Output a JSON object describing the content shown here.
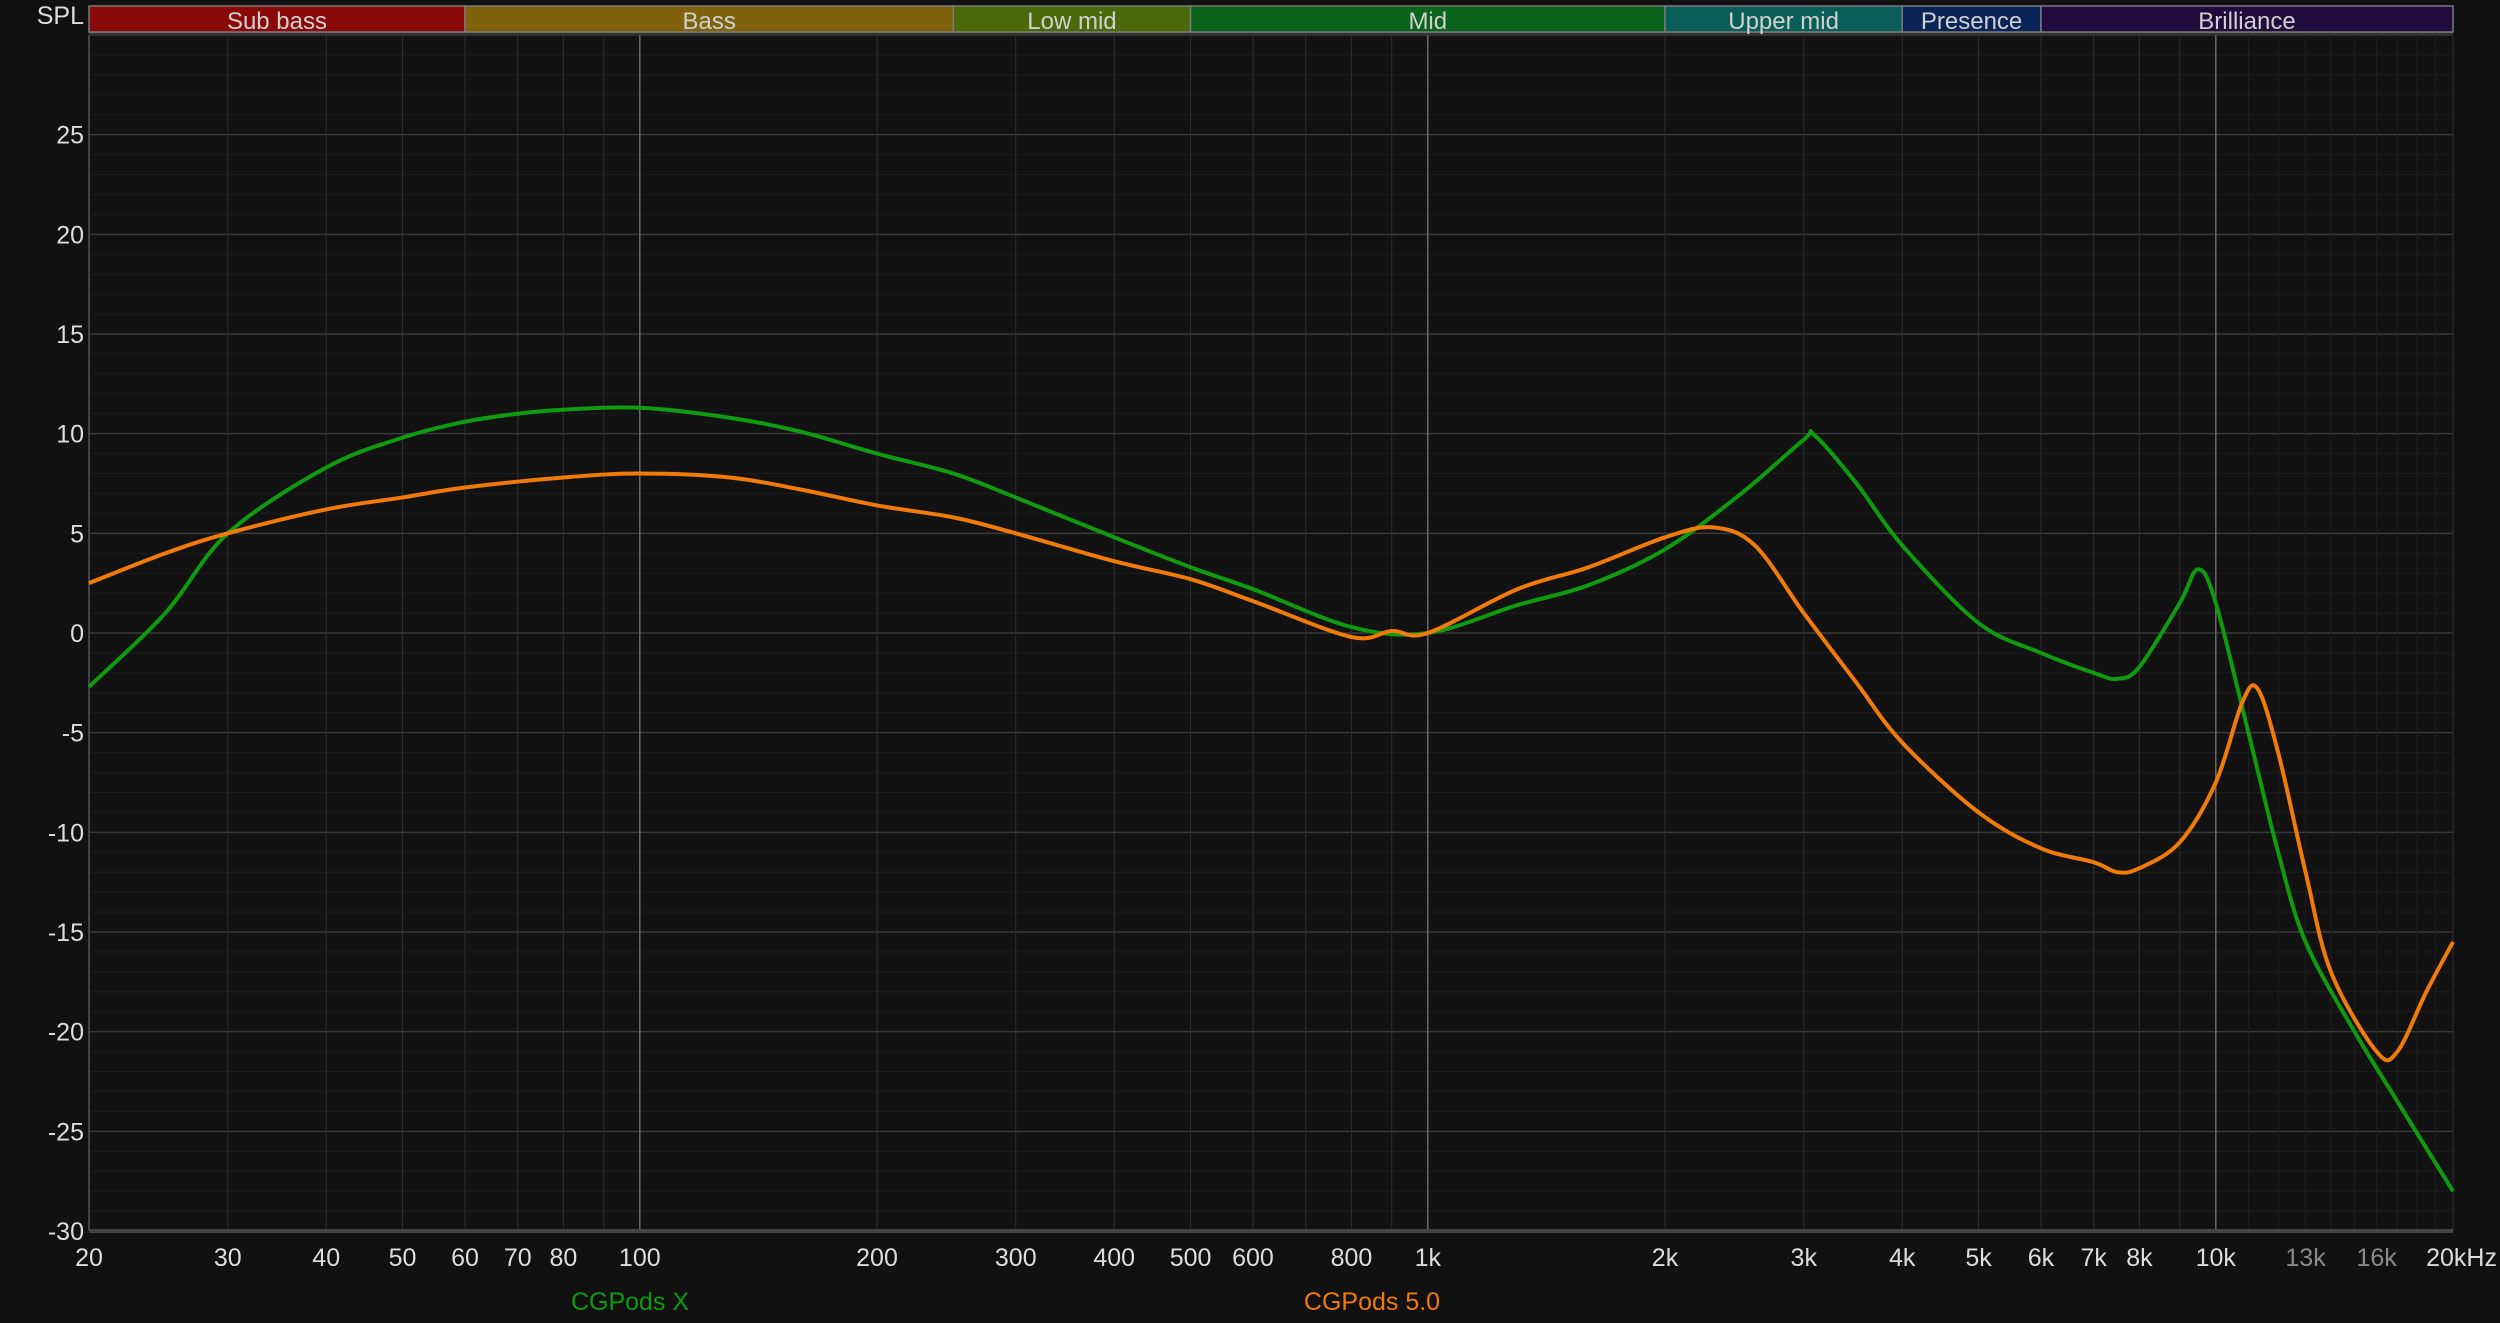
{
  "chart_data": {
    "type": "line",
    "ylabel": "SPL",
    "x_scale": "log",
    "xlim": [
      20,
      20000
    ],
    "ylim": [
      -30,
      30
    ],
    "grid": true,
    "x_ticks": [
      {
        "value": 20,
        "label": "20"
      },
      {
        "value": 30,
        "label": "30"
      },
      {
        "value": 40,
        "label": "40"
      },
      {
        "value": 50,
        "label": "50"
      },
      {
        "value": 60,
        "label": "60"
      },
      {
        "value": 70,
        "label": "70"
      },
      {
        "value": 80,
        "label": "80"
      },
      {
        "value": 100,
        "label": "100"
      },
      {
        "value": 200,
        "label": "200"
      },
      {
        "value": 300,
        "label": "300"
      },
      {
        "value": 400,
        "label": "400"
      },
      {
        "value": 500,
        "label": "500"
      },
      {
        "value": 600,
        "label": "600"
      },
      {
        "value": 800,
        "label": "800"
      },
      {
        "value": 1000,
        "label": "1k"
      },
      {
        "value": 2000,
        "label": "2k"
      },
      {
        "value": 3000,
        "label": "3k"
      },
      {
        "value": 4000,
        "label": "4k"
      },
      {
        "value": 5000,
        "label": "5k"
      },
      {
        "value": 6000,
        "label": "6k"
      },
      {
        "value": 7000,
        "label": "7k"
      },
      {
        "value": 8000,
        "label": "8k"
      },
      {
        "value": 10000,
        "label": "10k"
      },
      {
        "value": 13000,
        "label": "13k",
        "dim": true
      },
      {
        "value": 16000,
        "label": "16k",
        "dim": true
      },
      {
        "value": 20000,
        "label": "20kHz"
      }
    ],
    "y_ticks": [
      -30,
      -25,
      -20,
      -15,
      -10,
      -5,
      0,
      5,
      10,
      15,
      20,
      25
    ],
    "bands": [
      {
        "name": "Sub bass",
        "from": 20,
        "to": 60,
        "color": "#8a0a0a"
      },
      {
        "name": "Bass",
        "from": 60,
        "to": 250,
        "color": "#80620a"
      },
      {
        "name": "Low mid",
        "from": 250,
        "to": 500,
        "color": "#4a6a0a"
      },
      {
        "name": "Mid",
        "from": 500,
        "to": 2000,
        "color": "#0b641c"
      },
      {
        "name": "Upper mid",
        "from": 2000,
        "to": 4000,
        "color": "#0a5e58"
      },
      {
        "name": "Presence",
        "from": 4000,
        "to": 6000,
        "color": "#0a2458"
      },
      {
        "name": "Brilliance",
        "from": 6000,
        "to": 20000,
        "color": "#220a3c"
      }
    ],
    "series": [
      {
        "name": "CGPods X",
        "color": "#0f9a0f",
        "x": [
          20,
          25,
          30,
          40,
          50,
          60,
          70,
          80,
          100,
          130,
          160,
          200,
          250,
          300,
          400,
          500,
          600,
          800,
          1000,
          1300,
          1600,
          2000,
          2500,
          3000,
          3100,
          3500,
          4000,
          5000,
          6000,
          7000,
          7500,
          8000,
          9000,
          9500,
          10000,
          11000,
          12000,
          13000,
          15000,
          17000,
          20000
        ],
        "y": [
          -2.7,
          1,
          5,
          8.3,
          9.8,
          10.6,
          11.0,
          11.2,
          11.3,
          10.8,
          10.1,
          9.0,
          8.0,
          6.8,
          4.8,
          3.3,
          2.2,
          0.3,
          0,
          1.4,
          2.4,
          4.2,
          7,
          9.7,
          9.9,
          7.5,
          4.4,
          0.5,
          -1,
          -2,
          -2.3,
          -1.7,
          1.5,
          3.2,
          1.5,
          -5,
          -11,
          -15.5,
          -20,
          -23.5,
          -28
        ]
      },
      {
        "name": "CGPods 5.0",
        "color": "#f07a0a",
        "x": [
          20,
          25,
          30,
          40,
          50,
          60,
          80,
          100,
          130,
          160,
          200,
          250,
          300,
          400,
          500,
          600,
          800,
          900,
          1000,
          1300,
          1600,
          2000,
          2300,
          2600,
          3000,
          3500,
          4000,
          5000,
          6000,
          7000,
          7500,
          8000,
          9000,
          10000,
          10800,
          11300,
          12000,
          13000,
          14000,
          16000,
          17000,
          18500,
          20000
        ],
        "y": [
          2.5,
          4,
          5,
          6.2,
          6.8,
          7.3,
          7.8,
          8.0,
          7.8,
          7.2,
          6.4,
          5.8,
          5.0,
          3.6,
          2.7,
          1.6,
          -0.2,
          0.1,
          0,
          2.2,
          3.3,
          4.8,
          5.3,
          4.4,
          1,
          -2.5,
          -5.5,
          -9,
          -10.8,
          -11.5,
          -12,
          -11.8,
          -10.5,
          -7.5,
          -3.5,
          -2.8,
          -6,
          -12,
          -17,
          -21,
          -21,
          -18,
          -15.5
        ]
      }
    ]
  }
}
